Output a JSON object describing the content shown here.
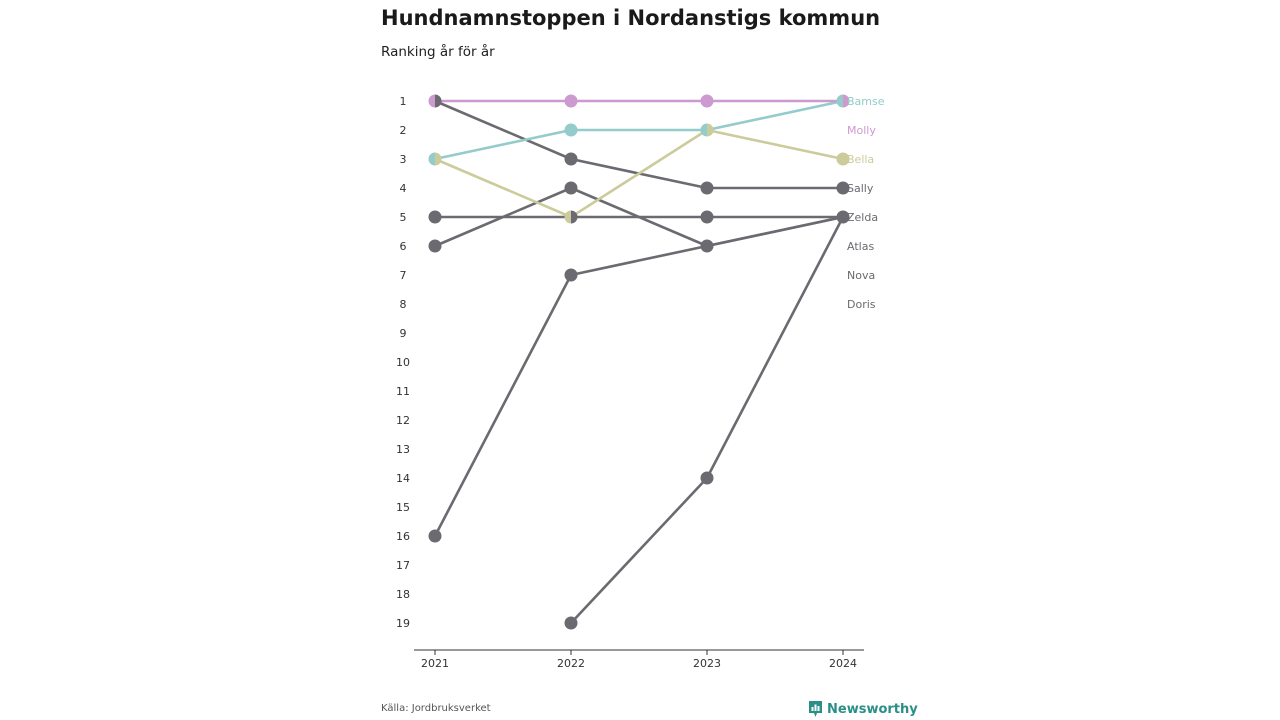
{
  "header": {
    "title": "Hundnamnstoppen i Nordanstigs kommun",
    "subtitle": "Ranking år för år"
  },
  "footer": {
    "source": "Källa: Jordbruksverket",
    "brand": "Newsworthy",
    "brand_icon": "bar-chart-pin-icon"
  },
  "colors": {
    "Bamse": "#94cbcb",
    "Molly": "#cd9ad0",
    "Bella": "#cccb9b",
    "default": "#6a6a70",
    "axis": "#333333"
  },
  "chart_data": {
    "type": "line",
    "chart_kind": "bump",
    "title": "Hundnamnstoppen i Nordanstigs kommun",
    "subtitle": "Ranking år för år",
    "x": [
      "2021",
      "2022",
      "2023",
      "2024"
    ],
    "y_ticks": [
      1,
      2,
      3,
      4,
      5,
      6,
      7,
      8,
      9,
      10,
      11,
      12,
      13,
      14,
      15,
      16,
      17,
      18,
      19
    ],
    "y_range": [
      1,
      19
    ],
    "y_reversed": true,
    "grid": false,
    "legend_placement": "right, direct labels",
    "series": [
      {
        "name": "Bamse",
        "values": [
          3,
          2,
          2,
          1
        ]
      },
      {
        "name": "Molly",
        "values": [
          1,
          1,
          1,
          1
        ]
      },
      {
        "name": "Bella",
        "values": [
          3,
          5,
          2,
          3
        ]
      },
      {
        "name": "Sally",
        "values": [
          1,
          3,
          4,
          4
        ]
      },
      {
        "name": "Zelda",
        "values": [
          5,
          5,
          5,
          5
        ]
      },
      {
        "name": "Atlas",
        "values": [
          6,
          4,
          6,
          5
        ]
      },
      {
        "name": "Nova",
        "values": [
          16,
          7,
          6,
          5
        ]
      },
      {
        "name": "Doris",
        "values": [
          null,
          19,
          14,
          5
        ]
      }
    ]
  }
}
